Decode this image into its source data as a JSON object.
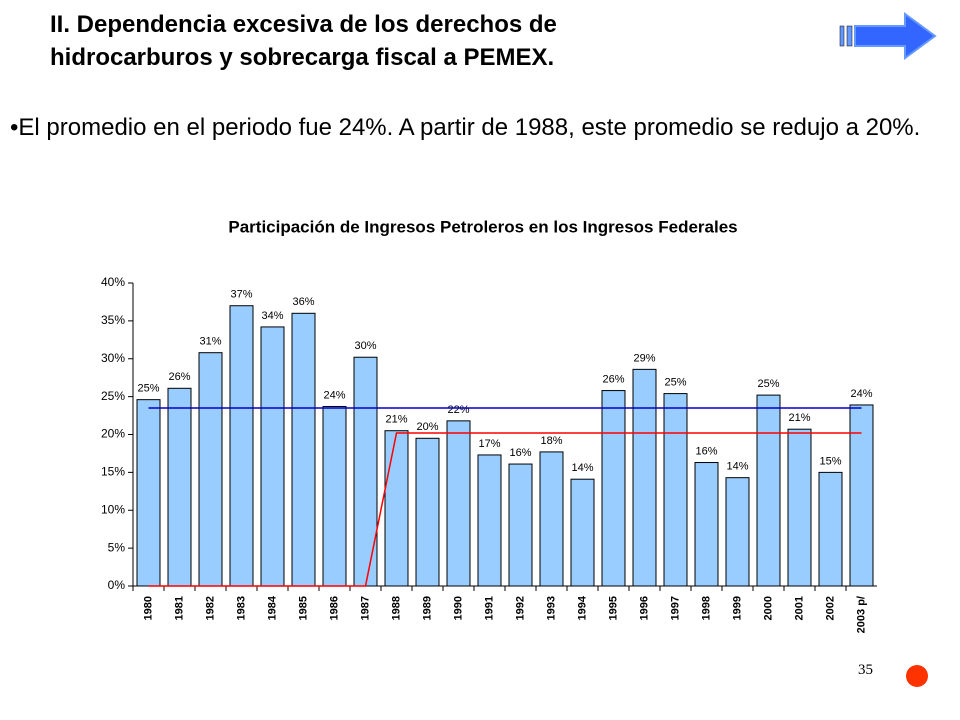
{
  "slide": {
    "title_lines": [
      "II. Dependencia excesiva de los derechos  de",
      "hidrocarburos y sobrecarga fiscal a PEMEX."
    ],
    "bullet": "El promedio en el periodo fue 24%. A partir de 1988, este promedio se redujo a 20%.",
    "page_number": "35"
  },
  "chart_data": {
    "type": "bar",
    "title": "Participación de Ingresos Petroleros en los Ingresos Federales",
    "categories": [
      "1980",
      "1981",
      "1982",
      "1983",
      "1984",
      "1985",
      "1986",
      "1987",
      "1988",
      "1989",
      "1990",
      "1991",
      "1992",
      "1993",
      "1994",
      "1995",
      "1996",
      "1997",
      "1998",
      "1999",
      "2000",
      "2001",
      "2002",
      "2003 p/"
    ],
    "values": [
      24.6,
      26.1,
      30.8,
      37,
      34.2,
      36,
      23.7,
      30.2,
      20.5,
      19.5,
      21.8,
      17.3,
      16.1,
      17.7,
      14.1,
      25.8,
      28.6,
      25.4,
      16.3,
      14.3,
      25.2,
      20.7,
      15,
      23.9
    ],
    "value_labels": [
      "25%",
      "26%",
      "31%",
      "37%",
      "34%",
      "36%",
      "24%",
      "30%",
      "21%",
      "20%",
      "22%",
      "17%",
      "16%",
      "18%",
      "14%",
      "26%",
      "29%",
      "25%",
      "16%",
      "14%",
      "25%",
      "21%",
      "15%",
      "24%"
    ],
    "color": "#99ccff",
    "lines": [
      {
        "color": "#0000cc",
        "values": [
          23.5,
          23.5,
          23.5,
          23.5,
          23.5,
          23.5,
          23.5,
          23.5,
          23.5,
          23.5,
          23.5,
          23.5,
          23.5,
          23.5,
          23.5,
          23.5,
          23.5,
          23.5,
          23.5,
          23.5,
          23.5,
          23.5,
          23.5,
          23.5
        ]
      },
      {
        "color": "#ff0000",
        "values": [
          0,
          0,
          0,
          0,
          0,
          0,
          0,
          0,
          20.2,
          20.2,
          20.2,
          20.2,
          20.2,
          20.2,
          20.2,
          20.2,
          20.2,
          20.2,
          20.2,
          20.2,
          20.2,
          20.2,
          20.2,
          20.2
        ]
      }
    ],
    "ylim": [
      0,
      40
    ],
    "yticks": [
      {
        "value": 0,
        "label": "0%"
      },
      {
        "value": 5,
        "label": "5%"
      },
      {
        "value": 10,
        "label": "10%"
      },
      {
        "value": 15,
        "label": "15%"
      },
      {
        "value": 20,
        "label": "20%"
      },
      {
        "value": 25,
        "label": "25%"
      },
      {
        "value": 30,
        "label": "30%"
      },
      {
        "value": 35,
        "label": "35%"
      },
      {
        "value": 40,
        "label": "40%"
      }
    ]
  }
}
